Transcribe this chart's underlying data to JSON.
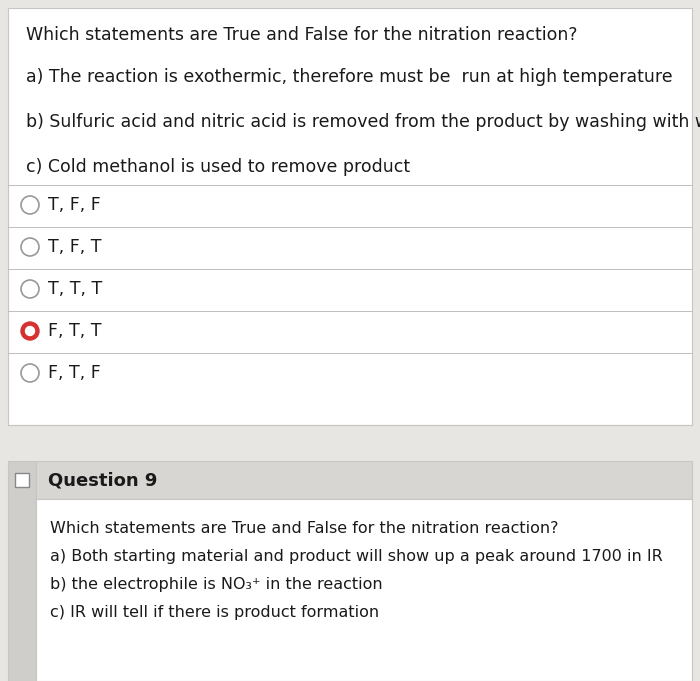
{
  "bg_color": "#e8e6e3",
  "panel1_bg": "#ffffff",
  "panel2_header_bg": "#d8d6d3",
  "panel2_content_bg": "#ffffff",
  "left_col_bg": "#d0ceca",
  "title1": "Which statements are True and False for the nitration reaction?",
  "stmt_a1": "a) The reaction is exothermic, therefore must be  run at high temperature",
  "stmt_b1": "b) Sulfuric acid and nitric acid is removed from the product by washing with water",
  "stmt_c1": "c) Cold methanol is used to remove product",
  "options": [
    "T, F, F",
    "T, F, T",
    "T, T, T",
    "F, T, T",
    "F, T, F"
  ],
  "selected_option": 3,
  "q9_label": "Question 9",
  "title2": "Which statements are True and False for the nitration reaction?",
  "stmt_a2": "a) Both starting material and product will show up a peak around 1700 in IR",
  "stmt_b2": "b) the electrophile is NO₃⁺ in the reaction",
  "stmt_c2": "c) IR will tell if there is product formation",
  "text_color": "#1a1a1a",
  "divider_color": "#c0bebb",
  "selected_fill": "#d63030",
  "selected_inner": "#ffffff",
  "unselected_fill": "#ffffff",
  "unselected_stroke": "#999999",
  "panel_border": "#c8c6c3",
  "font_size_main": 12.5,
  "font_size_q9": 12,
  "font_size_small": 11.5
}
